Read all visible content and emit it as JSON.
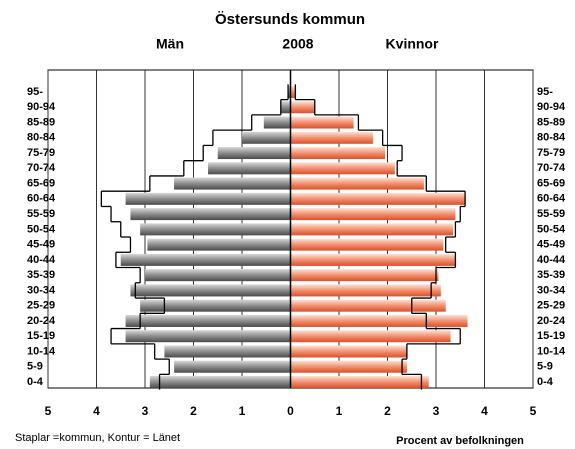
{
  "chart_data": {
    "type": "pyramid",
    "title": "Östersunds kommun",
    "subtitle": "2008",
    "categories": [
      "95-",
      "90-94",
      "85-89",
      "80-84",
      "75-79",
      "70-74",
      "65-69",
      "60-64",
      "55-59",
      "50-54",
      "45-49",
      "40-44",
      "35-39",
      "30-34",
      "25-29",
      "20-24",
      "15-19",
      "10-14",
      "5-9",
      "0-4"
    ],
    "series": [
      {
        "name": "Män",
        "color": "#8c8c8c",
        "values": [
          0.05,
          0.2,
          0.55,
          1.0,
          1.5,
          1.7,
          2.4,
          3.4,
          3.3,
          3.1,
          2.95,
          3.5,
          3.0,
          3.3,
          3.1,
          3.4,
          3.4,
          2.6,
          2.4,
          2.9
        ],
        "outline": [
          0.05,
          0.2,
          0.8,
          1.6,
          1.8,
          2.2,
          2.9,
          3.9,
          3.7,
          3.5,
          3.3,
          3.6,
          3.1,
          3.2,
          2.6,
          3.1,
          3.7,
          2.8,
          2.5,
          2.7
        ]
      },
      {
        "name": "Kvinnor",
        "color": "#f2906f",
        "values": [
          0.1,
          0.5,
          1.3,
          1.7,
          1.95,
          2.15,
          2.75,
          3.6,
          3.4,
          3.35,
          3.15,
          3.4,
          3.05,
          3.1,
          3.2,
          3.65,
          3.3,
          2.4,
          2.4,
          2.85
        ],
        "outline": [
          0.1,
          0.5,
          1.4,
          1.9,
          2.3,
          2.2,
          2.8,
          3.6,
          3.5,
          3.4,
          3.2,
          3.4,
          3.0,
          2.9,
          2.5,
          2.8,
          3.5,
          2.4,
          2.3,
          2.7
        ]
      }
    ],
    "xlim": [
      -5,
      5
    ],
    "xticks": [
      {
        "value": -5,
        "label": "5"
      },
      {
        "value": -4,
        "label": "4"
      },
      {
        "value": -3,
        "label": "3"
      },
      {
        "value": -2,
        "label": "2"
      },
      {
        "value": -1,
        "label": "1"
      },
      0,
      1,
      2,
      3,
      4,
      5
    ],
    "grid": true,
    "note": "Staplar =kommun, Kontur = Länet",
    "xlabel": "Procent av befolkningen"
  }
}
